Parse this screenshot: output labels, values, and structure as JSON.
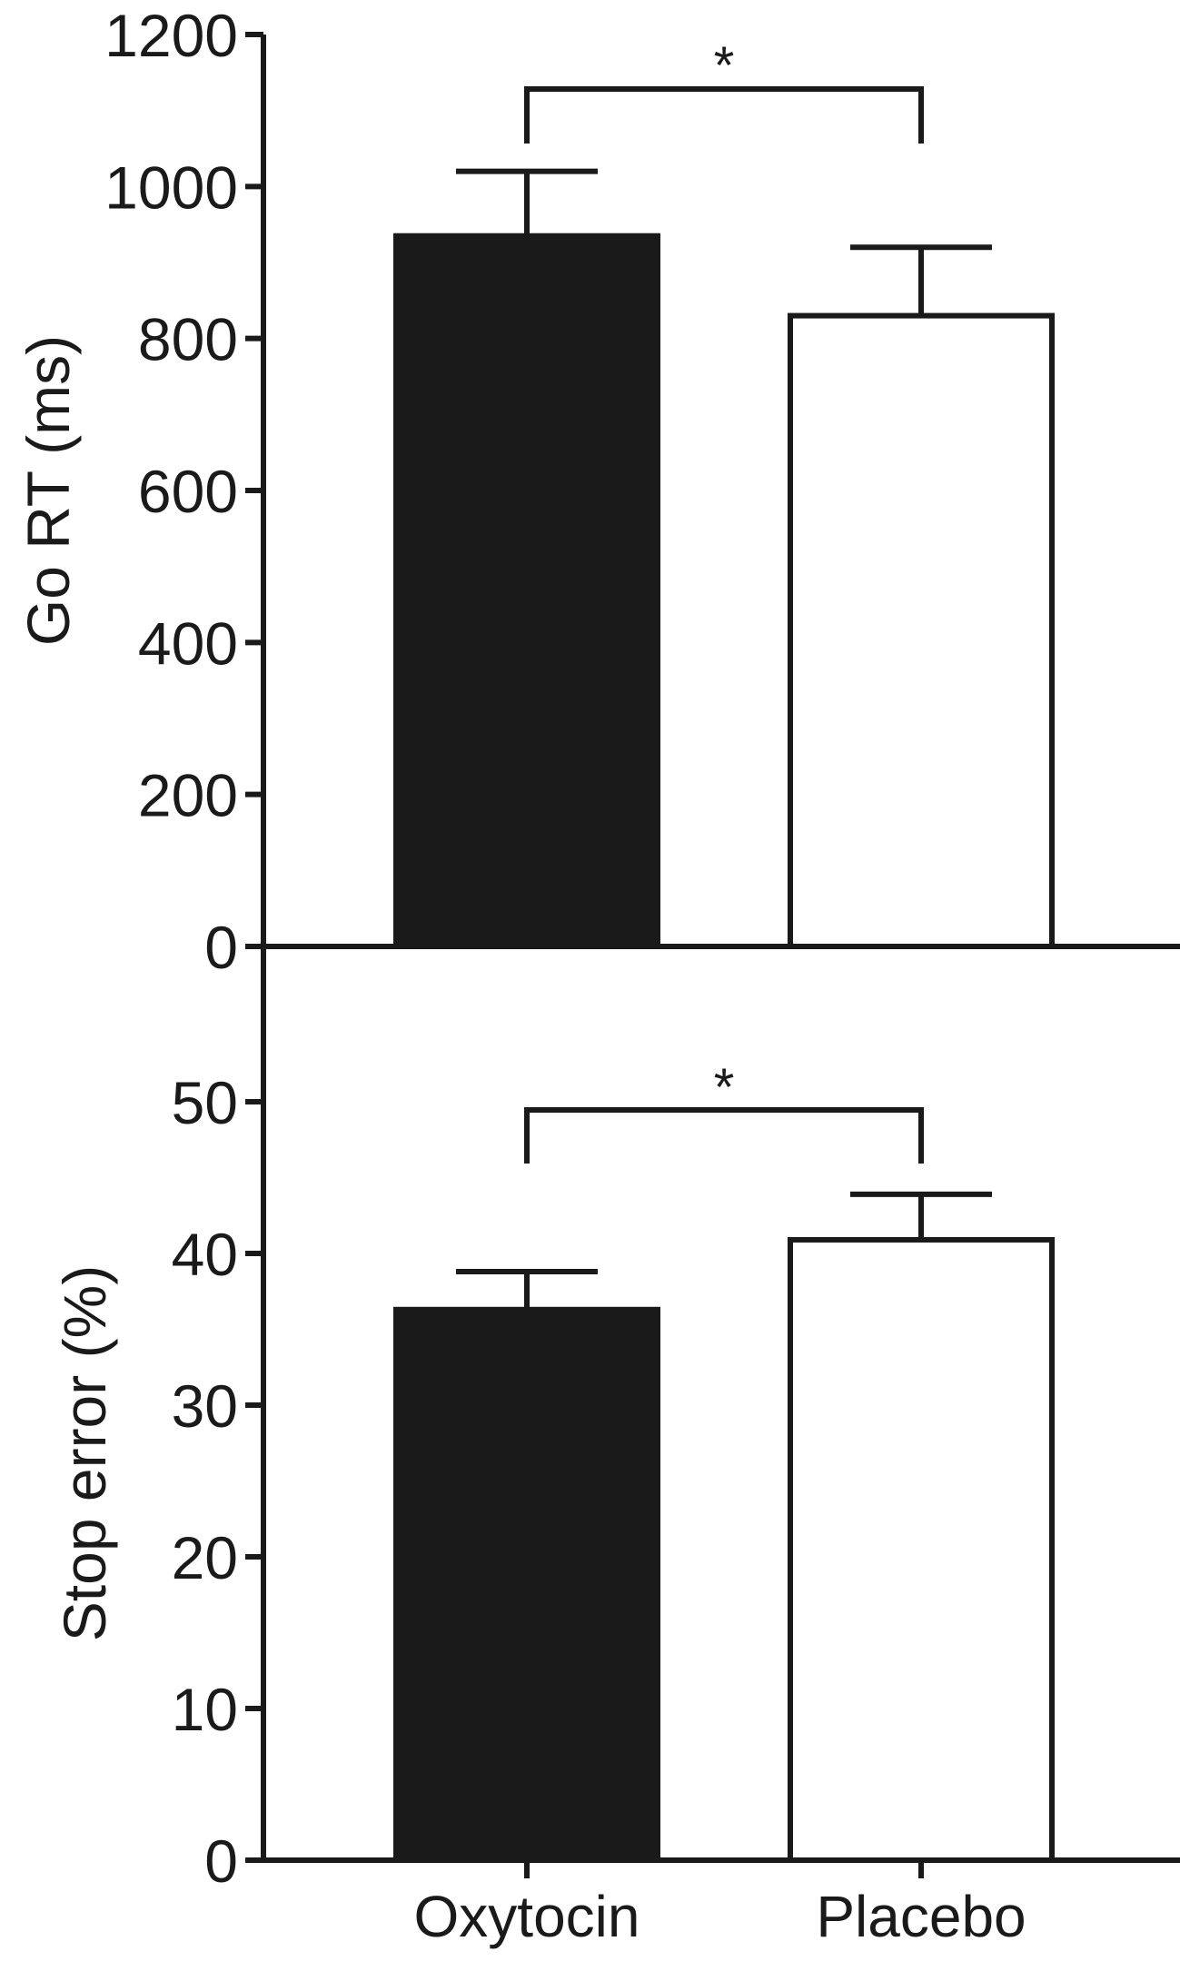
{
  "chart_data": [
    {
      "type": "bar",
      "categories": [
        "Oxytocin",
        "Placebo"
      ],
      "values": [
        935,
        830
      ],
      "errors": [
        85,
        90
      ],
      "ylabel": "Go RT (ms)",
      "ylim": [
        0,
        1200
      ],
      "yticks": [
        0,
        200,
        400,
        600,
        800,
        1000,
        1200
      ],
      "ytick_labels": [
        "0",
        "200",
        "400",
        "600",
        "800",
        "1000",
        "1200"
      ],
      "bar_fills": [
        "#1a1a1a",
        "#ffffff"
      ],
      "significance": {
        "between": [
          "Oxytocin",
          "Placebo"
        ],
        "label": "*"
      }
    },
    {
      "type": "bar",
      "categories": [
        "Oxytocin",
        "Placebo"
      ],
      "values": [
        36.3,
        40.9
      ],
      "errors": [
        2.5,
        3.0
      ],
      "ylabel": "Stop error (%)",
      "ylim": [
        0,
        50
      ],
      "yticks": [
        0,
        10,
        20,
        30,
        40,
        50
      ],
      "ytick_labels": [
        "0",
        "10",
        "20",
        "30",
        "40",
        "50"
      ],
      "xtick_labels": [
        "Oxytocin",
        "Placebo"
      ],
      "bar_fills": [
        "#1a1a1a",
        "#ffffff"
      ],
      "significance": {
        "between": [
          "Oxytocin",
          "Placebo"
        ],
        "label": "*"
      }
    }
  ],
  "colors": {
    "ink": "#1a1a1a",
    "background": "#ffffff"
  }
}
